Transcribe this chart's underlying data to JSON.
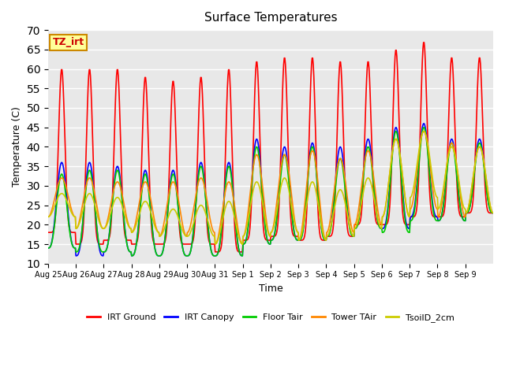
{
  "title": "Surface Temperatures",
  "ylabel": "Temperature (C)",
  "xlabel": "Time",
  "ylim": [
    10,
    70
  ],
  "background_color": "#e8e8e8",
  "figure_color": "#ffffff",
  "grid_color": "#ffffff",
  "series": [
    {
      "name": "IRT Ground",
      "color": "#ff0000"
    },
    {
      "name": "IRT Canopy",
      "color": "#0000ff"
    },
    {
      "name": "Floor Tair",
      "color": "#00cc00"
    },
    {
      "name": "Tower TAir",
      "color": "#ff8800"
    },
    {
      "name": "TsoilD_2cm",
      "color": "#cccc00"
    }
  ],
  "tick_labels": [
    "Aug 25",
    "Aug 26",
    "Aug 27",
    "Aug 28",
    "Aug 29",
    "Aug 30",
    "Aug 31",
    "Sep 1",
    "Sep 2",
    "Sep 3",
    "Sep 4",
    "Sep 5",
    "Sep 6",
    "Sep 7",
    "Sep 8",
    "Sep 9"
  ],
  "annotation_text": "TZ_irt",
  "annotation_bg": "#ffff99",
  "annotation_border": "#cc8800",
  "irt_ground_peaks": [
    60,
    60,
    60,
    58,
    57,
    58,
    60,
    62,
    63,
    63,
    62,
    62,
    65,
    67,
    63,
    63
  ],
  "irt_ground_troughs": [
    18,
    15,
    16,
    15,
    15,
    15,
    13,
    16,
    17,
    16,
    17,
    20,
    20,
    22,
    22,
    23
  ],
  "canopy_peaks": [
    36,
    36,
    35,
    34,
    34,
    36,
    36,
    42,
    40,
    41,
    40,
    42,
    45,
    46,
    42,
    42
  ],
  "canopy_troughs": [
    14,
    12,
    13,
    12,
    12,
    12,
    12,
    15,
    16,
    16,
    17,
    19,
    19,
    22,
    21,
    23
  ],
  "floor_peaks": [
    33,
    34,
    34,
    33,
    33,
    35,
    35,
    40,
    38,
    40,
    37,
    40,
    44,
    45,
    41,
    41
  ],
  "floor_troughs": [
    14,
    13,
    13,
    12,
    12,
    12,
    12,
    15,
    16,
    16,
    17,
    19,
    18,
    21,
    21,
    23
  ],
  "tower_peaks": [
    32,
    32,
    31,
    31,
    31,
    32,
    31,
    38,
    38,
    39,
    37,
    39,
    42,
    44,
    41,
    40
  ],
  "tower_troughs": [
    22,
    19,
    19,
    18,
    17,
    18,
    15,
    17,
    18,
    16,
    18,
    20,
    22,
    24,
    22,
    23
  ],
  "tsoil_peaks": [
    28,
    28,
    27,
    26,
    24,
    25,
    26,
    31,
    32,
    31,
    29,
    32,
    42,
    44,
    40,
    40
  ],
  "tsoil_troughs": [
    22,
    19,
    19,
    18,
    17,
    17,
    15,
    17,
    18,
    16,
    17,
    19,
    22,
    27,
    24,
    23
  ],
  "n_days": 16,
  "points_per_day": 48
}
